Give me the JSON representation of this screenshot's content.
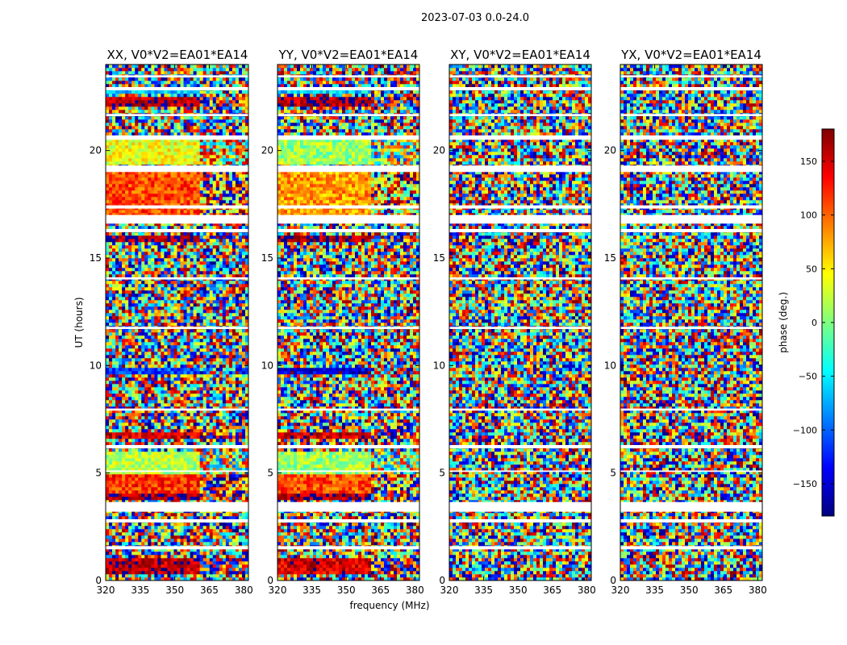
{
  "figure": {
    "title": "2023-07-03 0.0-24.0"
  },
  "chart_data": [
    {
      "type": "heatmap",
      "title": "XX, V0*V2=EA01*EA14",
      "xlabel": "",
      "ylabel": "UT (hours)",
      "xlim": [
        320,
        382
      ],
      "ylim": [
        0,
        24
      ],
      "x_ticks": [
        "320",
        "335",
        "350",
        "365",
        "380"
      ],
      "y_ticks": [
        "0",
        "5",
        "10",
        "15",
        "20"
      ],
      "coherent_bands": [
        {
          "t0": 0.3,
          "t1": 1.0,
          "phase": 160
        },
        {
          "t0": 3.7,
          "t1": 4.0,
          "phase": 170
        },
        {
          "t0": 4.0,
          "t1": 5.0,
          "phase": 120
        },
        {
          "t0": 5.0,
          "t1": 6.0,
          "phase": 20
        },
        {
          "t0": 6.6,
          "t1": 6.9,
          "phase": 150
        },
        {
          "t0": 9.6,
          "t1": 9.9,
          "phase": -110
        },
        {
          "t0": 15.8,
          "t1": 16.0,
          "phase": 170
        },
        {
          "t0": 17.0,
          "t1": 19.0,
          "phase": 110
        },
        {
          "t0": 19.3,
          "t1": 20.5,
          "phase": 40
        },
        {
          "t0": 22.0,
          "t1": 22.5,
          "phase": 165
        },
        {
          "t0": 22.7,
          "t1": 23.0,
          "phase": -60
        }
      ]
    },
    {
      "type": "heatmap",
      "title": "YY, V0*V2=EA01*EA14",
      "xlabel": "frequency (MHz)",
      "ylabel": "",
      "xlim": [
        320,
        382
      ],
      "ylim": [
        0,
        24
      ],
      "x_ticks": [
        "320",
        "335",
        "350",
        "365",
        "380"
      ],
      "y_ticks": [
        "0",
        "5",
        "10",
        "15",
        "20"
      ],
      "coherent_bands": [
        {
          "t0": 0.3,
          "t1": 1.0,
          "phase": 150
        },
        {
          "t0": 3.7,
          "t1": 4.0,
          "phase": 165
        },
        {
          "t0": 4.0,
          "t1": 5.0,
          "phase": 110
        },
        {
          "t0": 5.0,
          "t1": 6.0,
          "phase": 10
        },
        {
          "t0": 6.6,
          "t1": 6.9,
          "phase": 150
        },
        {
          "t0": 9.6,
          "t1": 9.9,
          "phase": -150
        },
        {
          "t0": 15.8,
          "t1": 16.0,
          "phase": 170
        },
        {
          "t0": 17.0,
          "t1": 19.0,
          "phase": 80
        },
        {
          "t0": 19.3,
          "t1": 20.5,
          "phase": 10
        },
        {
          "t0": 22.0,
          "t1": 22.5,
          "phase": 165
        },
        {
          "t0": 22.7,
          "t1": 23.0,
          "phase": -60
        }
      ]
    },
    {
      "type": "heatmap",
      "title": "XY, V0*V2=EA01*EA14",
      "xlabel": "",
      "ylabel": "",
      "xlim": [
        320,
        382
      ],
      "ylim": [
        0,
        24
      ],
      "x_ticks": [
        "320",
        "335",
        "350",
        "365",
        "380"
      ],
      "y_ticks": [
        "0",
        "5",
        "10",
        "15",
        "20"
      ],
      "coherent_bands": []
    },
    {
      "type": "heatmap",
      "title": "YX, V0*V2=EA01*EA14",
      "xlabel": "",
      "ylabel": "",
      "xlim": [
        320,
        382
      ],
      "ylim": [
        0,
        24
      ],
      "x_ticks": [
        "320",
        "335",
        "350",
        "365",
        "380"
      ],
      "y_ticks": [
        "0",
        "5",
        "10",
        "15",
        "20"
      ],
      "coherent_bands": []
    }
  ],
  "flagged_time_ranges": [
    [
      1.45,
      1.6
    ],
    [
      2.7,
      2.85
    ],
    [
      3.2,
      3.65
    ],
    [
      5.05,
      5.12
    ],
    [
      6.15,
      6.3
    ],
    [
      7.9,
      8.0
    ],
    [
      11.7,
      11.8
    ],
    [
      14.0,
      14.1
    ],
    [
      16.2,
      16.35
    ],
    [
      16.6,
      17.0
    ],
    [
      17.3,
      17.45
    ],
    [
      19.0,
      19.3
    ],
    [
      20.5,
      20.7
    ],
    [
      21.6,
      21.7
    ],
    [
      22.8,
      22.95
    ],
    [
      23.4,
      23.5
    ]
  ],
  "colorbar": {
    "label": "phase (deg.)",
    "min": -180,
    "max": 180,
    "ticks": [
      "150",
      "100",
      "50",
      "0",
      "−50",
      "−100",
      "−150"
    ],
    "tick_values": [
      150,
      100,
      50,
      0,
      -50,
      -100,
      -150
    ],
    "colormap": [
      "#00007f",
      "#0000ff",
      "#007fff",
      "#00ffff",
      "#7fff7f",
      "#ffff00",
      "#ff7f00",
      "#ff0000",
      "#7f0000"
    ]
  }
}
